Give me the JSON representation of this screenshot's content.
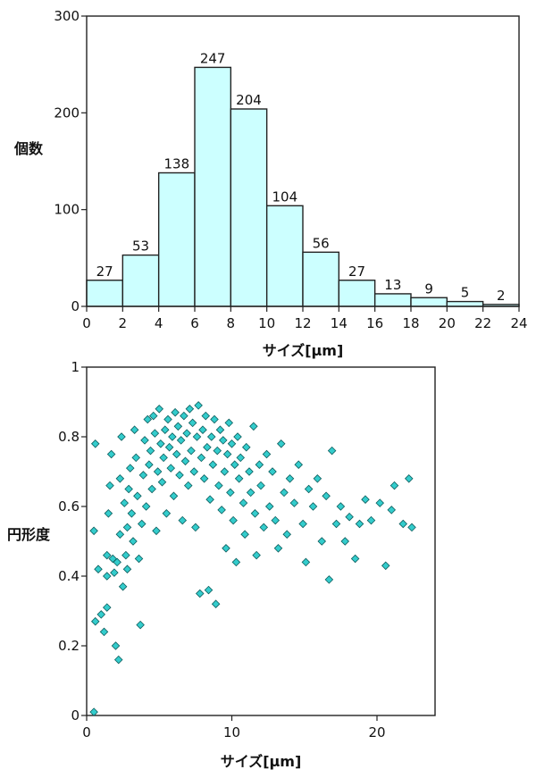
{
  "chart_data": [
    {
      "type": "bar",
      "xlabel": "サイズ[μm]",
      "ylabel": "個数",
      "bin_edges": [
        0,
        2,
        4,
        6,
        8,
        10,
        12,
        14,
        16,
        18,
        20,
        22,
        24
      ],
      "values": [
        27,
        53,
        138,
        247,
        204,
        104,
        56,
        27,
        13,
        9,
        5,
        2
      ],
      "xlim": [
        0,
        24
      ],
      "ylim": [
        0,
        300
      ],
      "xticks": [
        "0",
        "2",
        "4",
        "6",
        "8",
        "10",
        "12",
        "14",
        "16",
        "18",
        "20",
        "22",
        "24"
      ],
      "yticks": [
        "0",
        "100",
        "200",
        "300"
      ],
      "bar_color": "#ccffff",
      "grid": false
    },
    {
      "type": "scatter",
      "xlabel": "サイズ[μm]",
      "ylabel": "円形度",
      "xlim": [
        0,
        24
      ],
      "ylim": [
        0,
        1
      ],
      "xticks": [
        "0",
        "10",
        "20"
      ],
      "yticks": [
        "0",
        "0.2",
        "0.4",
        "0.6",
        "0.8",
        "1"
      ],
      "marker_color": "#33cccc",
      "grid": false,
      "points": [
        [
          0.5,
          0.01
        ],
        [
          0.5,
          0.53
        ],
        [
          0.6,
          0.78
        ],
        [
          0.6,
          0.27
        ],
        [
          0.8,
          0.42
        ],
        [
          1.0,
          0.29
        ],
        [
          1.2,
          0.24
        ],
        [
          1.4,
          0.31
        ],
        [
          1.4,
          0.46
        ],
        [
          1.4,
          0.4
        ],
        [
          1.5,
          0.58
        ],
        [
          1.6,
          0.66
        ],
        [
          1.7,
          0.75
        ],
        [
          1.8,
          0.45
        ],
        [
          1.9,
          0.41
        ],
        [
          2.0,
          0.2
        ],
        [
          2.1,
          0.44
        ],
        [
          2.2,
          0.16
        ],
        [
          2.3,
          0.52
        ],
        [
          2.3,
          0.68
        ],
        [
          2.4,
          0.8
        ],
        [
          2.5,
          0.37
        ],
        [
          2.6,
          0.61
        ],
        [
          2.7,
          0.46
        ],
        [
          2.8,
          0.42
        ],
        [
          2.8,
          0.54
        ],
        [
          2.9,
          0.65
        ],
        [
          3.0,
          0.71
        ],
        [
          3.1,
          0.58
        ],
        [
          3.2,
          0.5
        ],
        [
          3.3,
          0.82
        ],
        [
          3.4,
          0.74
        ],
        [
          3.5,
          0.63
        ],
        [
          3.6,
          0.45
        ],
        [
          3.7,
          0.26
        ],
        [
          3.8,
          0.55
        ],
        [
          3.9,
          0.69
        ],
        [
          4.0,
          0.79
        ],
        [
          4.1,
          0.6
        ],
        [
          4.2,
          0.85
        ],
        [
          4.3,
          0.72
        ],
        [
          4.4,
          0.76
        ],
        [
          4.5,
          0.65
        ],
        [
          4.6,
          0.86
        ],
        [
          4.7,
          0.81
        ],
        [
          4.8,
          0.53
        ],
        [
          4.9,
          0.7
        ],
        [
          5.0,
          0.88
        ],
        [
          5.1,
          0.78
        ],
        [
          5.2,
          0.67
        ],
        [
          5.3,
          0.74
        ],
        [
          5.4,
          0.82
        ],
        [
          5.5,
          0.58
        ],
        [
          5.6,
          0.85
        ],
        [
          5.7,
          0.77
        ],
        [
          5.8,
          0.71
        ],
        [
          5.9,
          0.8
        ],
        [
          6.0,
          0.63
        ],
        [
          6.1,
          0.87
        ],
        [
          6.2,
          0.75
        ],
        [
          6.3,
          0.83
        ],
        [
          6.4,
          0.69
        ],
        [
          6.5,
          0.79
        ],
        [
          6.6,
          0.56
        ],
        [
          6.7,
          0.86
        ],
        [
          6.8,
          0.73
        ],
        [
          6.9,
          0.81
        ],
        [
          7.0,
          0.66
        ],
        [
          7.1,
          0.88
        ],
        [
          7.2,
          0.76
        ],
        [
          7.3,
          0.84
        ],
        [
          7.4,
          0.7
        ],
        [
          7.5,
          0.54
        ],
        [
          7.6,
          0.8
        ],
        [
          7.7,
          0.89
        ],
        [
          7.8,
          0.35
        ],
        [
          7.9,
          0.74
        ],
        [
          8.0,
          0.82
        ],
        [
          8.1,
          0.68
        ],
        [
          8.2,
          0.86
        ],
        [
          8.3,
          0.77
        ],
        [
          8.4,
          0.36
        ],
        [
          8.5,
          0.62
        ],
        [
          8.6,
          0.8
        ],
        [
          8.7,
          0.72
        ],
        [
          8.8,
          0.85
        ],
        [
          8.9,
          0.32
        ],
        [
          9.0,
          0.76
        ],
        [
          9.1,
          0.66
        ],
        [
          9.2,
          0.82
        ],
        [
          9.3,
          0.59
        ],
        [
          9.4,
          0.79
        ],
        [
          9.5,
          0.7
        ],
        [
          9.6,
          0.48
        ],
        [
          9.7,
          0.75
        ],
        [
          9.8,
          0.84
        ],
        [
          9.9,
          0.64
        ],
        [
          10.0,
          0.78
        ],
        [
          10.1,
          0.56
        ],
        [
          10.2,
          0.72
        ],
        [
          10.3,
          0.44
        ],
        [
          10.4,
          0.8
        ],
        [
          10.5,
          0.68
        ],
        [
          10.6,
          0.74
        ],
        [
          10.8,
          0.61
        ],
        [
          10.9,
          0.52
        ],
        [
          11.0,
          0.77
        ],
        [
          11.2,
          0.7
        ],
        [
          11.3,
          0.64
        ],
        [
          11.5,
          0.83
        ],
        [
          11.6,
          0.58
        ],
        [
          11.7,
          0.46
        ],
        [
          11.9,
          0.72
        ],
        [
          12.0,
          0.66
        ],
        [
          12.2,
          0.54
        ],
        [
          12.4,
          0.75
        ],
        [
          12.6,
          0.6
        ],
        [
          12.8,
          0.7
        ],
        [
          13.0,
          0.56
        ],
        [
          13.2,
          0.48
        ],
        [
          13.4,
          0.78
        ],
        [
          13.6,
          0.64
        ],
        [
          13.8,
          0.52
        ],
        [
          14.0,
          0.68
        ],
        [
          14.3,
          0.61
        ],
        [
          14.6,
          0.72
        ],
        [
          14.9,
          0.55
        ],
        [
          15.1,
          0.44
        ],
        [
          15.3,
          0.65
        ],
        [
          15.6,
          0.6
        ],
        [
          15.9,
          0.68
        ],
        [
          16.2,
          0.5
        ],
        [
          16.5,
          0.63
        ],
        [
          16.7,
          0.39
        ],
        [
          16.9,
          0.76
        ],
        [
          17.2,
          0.55
        ],
        [
          17.5,
          0.6
        ],
        [
          17.8,
          0.5
        ],
        [
          18.1,
          0.57
        ],
        [
          18.5,
          0.45
        ],
        [
          18.8,
          0.55
        ],
        [
          19.2,
          0.62
        ],
        [
          19.6,
          0.56
        ],
        [
          20.2,
          0.61
        ],
        [
          20.6,
          0.43
        ],
        [
          21.0,
          0.59
        ],
        [
          21.2,
          0.66
        ],
        [
          21.8,
          0.55
        ],
        [
          22.2,
          0.68
        ],
        [
          22.4,
          0.54
        ]
      ]
    }
  ]
}
